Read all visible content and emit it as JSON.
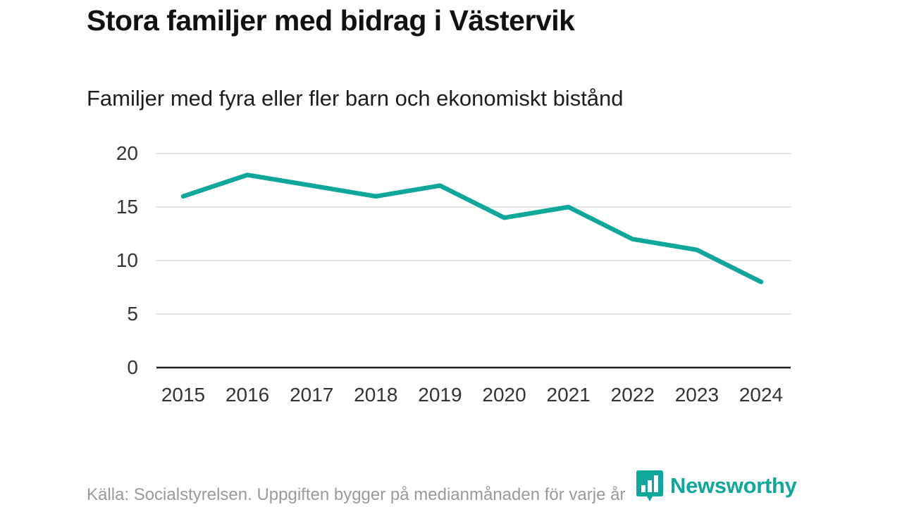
{
  "title": "Stora familjer med bidrag i Västervik",
  "subtitle": "Familjer med fyra eller fler barn och ekonomiskt bistånd",
  "footer": {
    "source": "Källa: Socialstyrelsen. Uppgiften bygger på medianmånaden för varje år"
  },
  "branding": {
    "name": "Newsworthy",
    "color": "#0ea79b",
    "icon": "bar-chart-badge-icon"
  },
  "chart_data": {
    "type": "line",
    "title": "Stora familjer med bidrag i Västervik",
    "subtitle": "Familjer med fyra eller fler barn och ekonomiskt bistånd",
    "categories": [
      "2015",
      "2016",
      "2017",
      "2018",
      "2019",
      "2020",
      "2021",
      "2022",
      "2023",
      "2024"
    ],
    "values": [
      16,
      18,
      17,
      16,
      17,
      14,
      15,
      12,
      11,
      8
    ],
    "xlabel": "",
    "ylabel": "",
    "ylim": [
      0,
      20
    ],
    "yticks": [
      0,
      5,
      10,
      15,
      20
    ],
    "grid": true,
    "legend": "none",
    "line_color": "#0ea79b",
    "grid_color": "#e4e4e4",
    "axis_color": "#222222",
    "tick_label_color": "#333333"
  }
}
